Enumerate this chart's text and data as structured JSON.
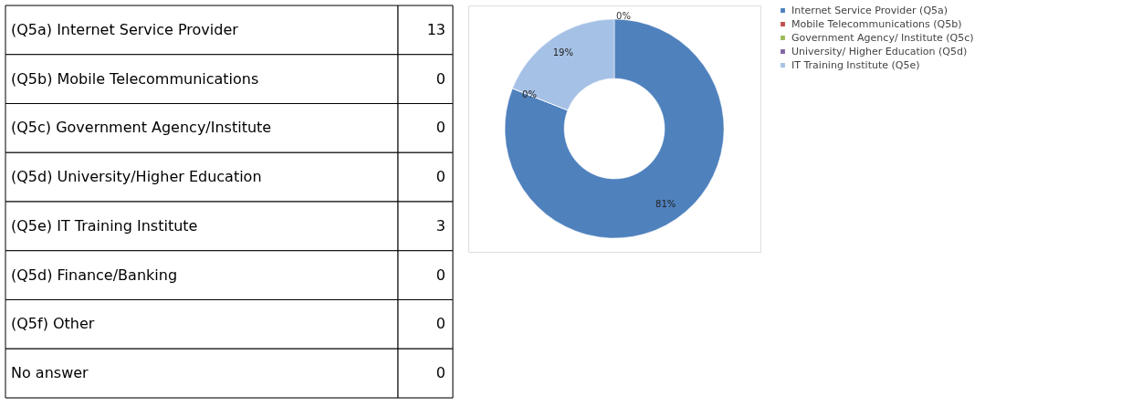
{
  "chart_data": [
    {
      "type": "other",
      "categories": [
        "(Q5a)  Internet Service Provider",
        "(Q5b)  Mobile Telecommunications",
        "(Q5c)  Government Agency/Institute",
        "(Q5d)  University/Higher Education",
        "(Q5e)  IT Training Institute",
        "(Q5d)  Finance/Banking",
        "(Q5f)  Other",
        "No answer"
      ],
      "values": [
        13,
        0,
        0,
        0,
        3,
        0,
        0,
        0
      ],
      "data_labels": true
    },
    {
      "type": "donut",
      "categories": [
        "Internet Service Provider (Q5a)",
        "Mobile Telecommunications (Q5b)",
        "Government Agency/ Institute (Q5c)",
        "University/ Higher Education (Q5d)",
        "IT Training Institute (Q5e)"
      ],
      "values": [
        81,
        0,
        0,
        0,
        19
      ],
      "colors": [
        "#4f81bd",
        "#c0504d",
        "#9bbb59",
        "#8064a2",
        "#a6c1e6"
      ],
      "value_labels": [
        "81%",
        "0%",
        null,
        null,
        "19%"
      ],
      "annotations": [
        "0%"
      ],
      "legend": "right"
    }
  ]
}
